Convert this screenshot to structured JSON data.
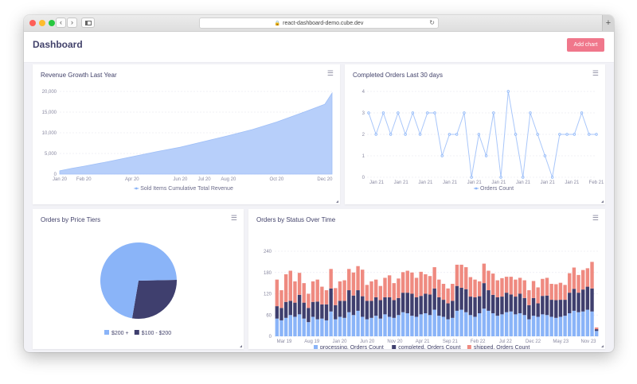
{
  "browser": {
    "url": "react-dashboard-demo.cube.dev",
    "back_icon": "chevron-left-icon",
    "forward_icon": "chevron-right-icon",
    "sidebar_icon": "sidebar-icon",
    "reload_icon": "reload-icon",
    "new_tab_icon": "plus-icon"
  },
  "header": {
    "title": "Dashboard",
    "add_chart_label": "Add chart"
  },
  "colors": {
    "accent": "#f0778b",
    "light_blue": "#8ab4f8",
    "area_fill": "#b7cffa",
    "dark_navy": "#3f3f6e",
    "shipped": "#ef8a80",
    "title_text": "#43436b"
  },
  "chart_data": [
    {
      "id": "revenue",
      "type": "area",
      "title": "Revenue Growth Last Year",
      "y_ticks": [
        "0",
        "5,000",
        "10,000",
        "15,000",
        "20,000"
      ],
      "ylim": [
        0,
        20000
      ],
      "x_ticks": [
        "Jan 20",
        "Feb 20",
        "Apr 20",
        "Jun 20",
        "Jul 20",
        "Aug 20",
        "Oct 20",
        "Dec 20"
      ],
      "x_tick_months": [
        0,
        1,
        3,
        5,
        6,
        7,
        9,
        11
      ],
      "x_month_max": 11.3,
      "x": [
        0,
        0.5,
        1,
        2,
        3,
        4,
        5,
        6,
        7,
        8,
        9,
        10,
        11,
        11.3
      ],
      "values": [
        800,
        1400,
        1900,
        3000,
        4200,
        5400,
        6500,
        7900,
        9300,
        10800,
        12600,
        14700,
        16900,
        19600
      ],
      "legend": "Sold Items Cumulative Total Revenue"
    },
    {
      "id": "orders30",
      "type": "line",
      "title": "Completed Orders Last 30 days",
      "y_ticks": [
        "0",
        "1",
        "2",
        "3",
        "4"
      ],
      "ylim": [
        0,
        4
      ],
      "x_ticks": [
        "Jan 21",
        "Jan 21",
        "Jan 21",
        "Jan 21",
        "Jan 21",
        "Jan 21",
        "Jan 21",
        "Jan 21",
        "Jan 21",
        "Feb 21"
      ],
      "values": [
        3,
        2,
        3,
        2,
        3,
        2,
        3,
        2,
        3,
        3,
        1,
        2,
        2,
        3,
        0,
        2,
        1,
        3,
        0,
        4,
        2,
        0,
        3,
        2,
        1,
        0,
        2,
        2,
        2,
        3,
        2,
        2
      ],
      "legend": "Orders Count"
    },
    {
      "id": "price_tiers",
      "type": "pie",
      "title": "Orders by Price Tiers",
      "labels": [
        "$200 +",
        "$100 - $200"
      ],
      "values": [
        72,
        28
      ],
      "colors": [
        "#8ab4f8",
        "#3f3f6e"
      ]
    },
    {
      "id": "status_over_time",
      "type": "bar",
      "stacked": true,
      "title": "Orders by Status Over Time",
      "y_ticks": [
        "0",
        "60",
        "120",
        "180",
        "240"
      ],
      "ylim": [
        0,
        240
      ],
      "x_ticks": [
        "Mar 19",
        "Aug 19",
        "Jan 20",
        "Jun 20",
        "Nov 20",
        "Apr 21",
        "Sep 21",
        "Feb 22",
        "Jul 22",
        "Dec 22",
        "May 23",
        "Nov 23"
      ],
      "series": [
        {
          "name": "processing, Orders Count",
          "color": "#8ab4f8",
          "values": [
            50,
            45,
            52,
            60,
            55,
            62,
            50,
            40,
            55,
            48,
            50,
            45,
            70,
            48,
            55,
            52,
            68,
            60,
            72,
            55,
            48,
            52,
            58,
            50,
            62,
            55,
            52,
            60,
            68,
            65,
            58,
            55,
            62,
            65,
            60,
            75,
            58,
            55,
            48,
            52,
            72,
            75,
            68,
            60,
            55,
            65,
            78,
            72,
            65,
            58,
            62,
            68,
            70,
            62,
            65,
            60,
            48,
            58,
            55,
            62,
            60,
            55,
            52,
            55,
            58,
            65,
            72,
            68,
            70,
            75,
            70,
            15
          ]
        },
        {
          "name": "completed, Orders Count",
          "color": "#3f3f6e",
          "values": [
            35,
            35,
            45,
            40,
            40,
            55,
            45,
            40,
            42,
            50,
            40,
            45,
            65,
            40,
            45,
            48,
            62,
            55,
            58,
            58,
            52,
            48,
            52,
            52,
            48,
            55,
            50,
            48,
            55,
            58,
            62,
            55,
            52,
            55,
            58,
            60,
            52,
            48,
            45,
            48,
            70,
            62,
            65,
            52,
            55,
            48,
            72,
            58,
            52,
            52,
            50,
            55,
            48,
            50,
            55,
            48,
            40,
            50,
            38,
            52,
            55,
            48,
            50,
            48,
            45,
            58,
            62,
            55,
            62,
            65,
            65,
            5
          ]
        },
        {
          "name": "shipped, Orders Count",
          "color": "#ef8a80",
          "values": [
            75,
            50,
            78,
            85,
            60,
            62,
            55,
            40,
            58,
            62,
            50,
            40,
            55,
            48,
            55,
            58,
            60,
            65,
            68,
            75,
            45,
            55,
            50,
            40,
            55,
            62,
            48,
            55,
            58,
            62,
            60,
            55,
            68,
            55,
            52,
            60,
            50,
            45,
            42,
            48,
            60,
            65,
            62,
            55,
            50,
            42,
            55,
            55,
            60,
            48,
            52,
            45,
            50,
            48,
            45,
            50,
            42,
            48,
            45,
            48,
            50,
            45,
            45,
            48,
            42,
            55,
            60,
            50,
            55,
            52,
            75,
            5
          ]
        }
      ]
    }
  ]
}
